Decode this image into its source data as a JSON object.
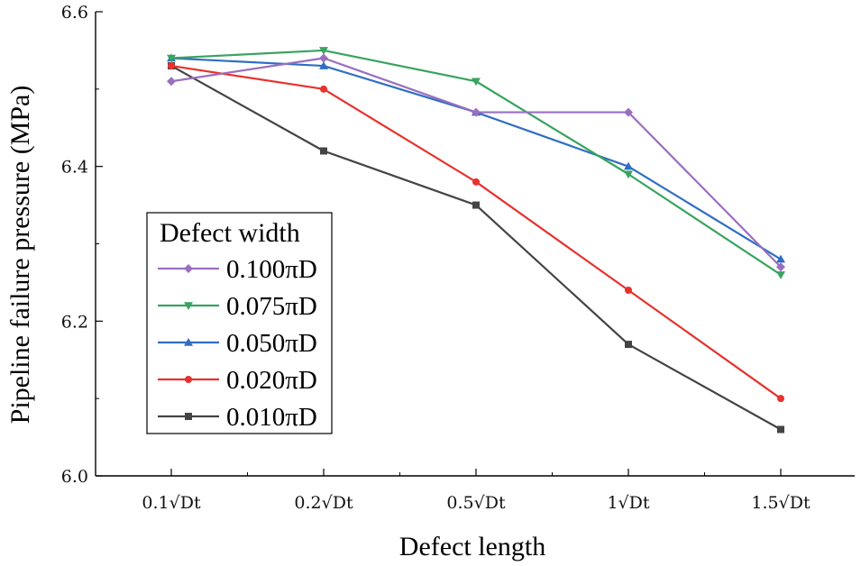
{
  "chart_data": {
    "type": "line",
    "xlabel": "Defect length",
    "ylabel": "Pipeline failure pressure (MPa)",
    "categories": [
      "0.1√Dt",
      "0.2√Dt",
      "0.5√Dt",
      "1√Dt",
      "1.5√Dt"
    ],
    "ylim": [
      6.0,
      6.6
    ],
    "yticks": [
      "6.0",
      "6.2",
      "6.4",
      "6.6"
    ],
    "grid": false,
    "legend": {
      "title": "Defect width",
      "placement": "center-left"
    },
    "series": [
      {
        "name": "0.100πD",
        "color": "#9a6fc0",
        "marker": "diamond",
        "values": [
          6.51,
          6.54,
          6.47,
          6.47,
          6.27
        ]
      },
      {
        "name": "0.075πD",
        "color": "#3aa35f",
        "marker": "triangle-down",
        "values": [
          6.54,
          6.55,
          6.51,
          6.39,
          6.26
        ]
      },
      {
        "name": "0.050πD",
        "color": "#2f6ec2",
        "marker": "triangle-up",
        "values": [
          6.54,
          6.53,
          6.47,
          6.4,
          6.28
        ]
      },
      {
        "name": "0.020πD",
        "color": "#e8312d",
        "marker": "circle",
        "values": [
          6.53,
          6.5,
          6.38,
          6.24,
          6.1
        ]
      },
      {
        "name": "0.010πD",
        "color": "#444444",
        "marker": "square",
        "values": [
          6.53,
          6.42,
          6.35,
          6.17,
          6.06
        ]
      }
    ]
  }
}
